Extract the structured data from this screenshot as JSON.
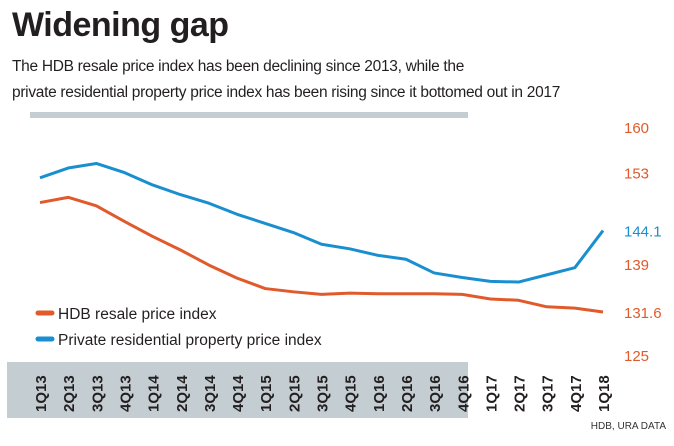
{
  "title": "Widening gap",
  "subtitle_lines": [
    "The HDB resale price index has been declining since 2013, while the",
    "private residential property price index has been rising since it bottomed out in 2017"
  ],
  "source": "HDB, URA DATA",
  "chart_data": {
    "type": "line",
    "title": "Widening gap",
    "x": [
      "1Q13",
      "2Q13",
      "3Q13",
      "4Q13",
      "1Q14",
      "2Q14",
      "3Q14",
      "4Q14",
      "1Q15",
      "2Q15",
      "3Q15",
      "4Q15",
      "1Q16",
      "2Q16",
      "3Q16",
      "4Q16",
      "1Q17",
      "2Q17",
      "3Q17",
      "4Q17",
      "1Q18"
    ],
    "ylim": [
      125,
      160
    ],
    "yticks": [
      "160",
      "153",
      "144.1",
      "139",
      "131.6",
      "125"
    ],
    "ytick_values": [
      160,
      153,
      144.1,
      139,
      131.6,
      125
    ],
    "ytick_colors": [
      "#e05a2b",
      "#e05a2b",
      "#1a8fd0",
      "#e05a2b",
      "#e05a2b",
      "#e05a2b"
    ],
    "grid": false,
    "legend_placement": "bottom-left",
    "series": [
      {
        "name": "HDB resale price index",
        "color": "#e05a2b",
        "values": [
          148.4,
          149.2,
          147.9,
          145.5,
          143.2,
          141.1,
          138.8,
          136.8,
          135.2,
          134.7,
          134.3,
          134.5,
          134.4,
          134.4,
          134.4,
          134.3,
          133.6,
          133.4,
          132.4,
          132.2,
          131.6
        ]
      },
      {
        "name": "Private residential property price index",
        "color": "#1a8fd0",
        "values": [
          152.2,
          153.7,
          154.4,
          153.0,
          151.1,
          149.6,
          148.3,
          146.6,
          145.2,
          143.8,
          142.0,
          141.3,
          140.3,
          139.7,
          137.6,
          136.9,
          136.3,
          136.2,
          137.3,
          138.4,
          144.1
        ]
      }
    ]
  }
}
